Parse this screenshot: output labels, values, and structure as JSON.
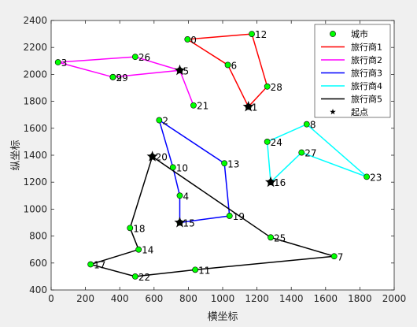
{
  "chart_data": {
    "type": "line",
    "xlabel": "横坐标",
    "ylabel": "纵坐标",
    "xlim": [
      0,
      2000
    ],
    "ylim": [
      400,
      2400
    ],
    "xticks": [
      0,
      200,
      400,
      600,
      800,
      1000,
      1200,
      1400,
      1600,
      1800,
      2000
    ],
    "yticks": [
      400,
      600,
      800,
      1000,
      1200,
      1400,
      1600,
      1800,
      2000,
      2200,
      2400
    ],
    "grid": false,
    "legend_position": "top-right",
    "city_legend": "城市",
    "start_legend": "起点",
    "cities": [
      {
        "id": 0,
        "x": 795,
        "y": 2260
      },
      {
        "id": 1,
        "x": 1150,
        "y": 1760
      },
      {
        "id": 2,
        "x": 630,
        "y": 1660
      },
      {
        "id": 3,
        "x": 40,
        "y": 2090
      },
      {
        "id": 4,
        "x": 750,
        "y": 1100
      },
      {
        "id": 5,
        "x": 750,
        "y": 2030
      },
      {
        "id": 6,
        "x": 1030,
        "y": 2070
      },
      {
        "id": 7,
        "x": 1650,
        "y": 650
      },
      {
        "id": 8,
        "x": 1490,
        "y": 1630
      },
      {
        "id": 9,
        "x": 360,
        "y": 1980
      },
      {
        "id": 10,
        "x": 710,
        "y": 1310
      },
      {
        "id": 11,
        "x": 840,
        "y": 550
      },
      {
        "id": 12,
        "x": 1170,
        "y": 2300
      },
      {
        "id": 13,
        "x": 1010,
        "y": 1340
      },
      {
        "id": 14,
        "x": 510,
        "y": 700
      },
      {
        "id": 15,
        "x": 750,
        "y": 900
      },
      {
        "id": 16,
        "x": 1280,
        "y": 1200
      },
      {
        "id": 17,
        "x": 230,
        "y": 590
      },
      {
        "id": 18,
        "x": 460,
        "y": 860
      },
      {
        "id": 19,
        "x": 1040,
        "y": 950
      },
      {
        "id": 20,
        "x": 590,
        "y": 1390
      },
      {
        "id": 21,
        "x": 830,
        "y": 1770
      },
      {
        "id": 22,
        "x": 490,
        "y": 500
      },
      {
        "id": 23,
        "x": 1840,
        "y": 1240
      },
      {
        "id": 24,
        "x": 1260,
        "y": 1500
      },
      {
        "id": 25,
        "x": 1280,
        "y": 790
      },
      {
        "id": 26,
        "x": 490,
        "y": 2130
      },
      {
        "id": 27,
        "x": 1460,
        "y": 1420
      },
      {
        "id": 28,
        "x": 1260,
        "y": 1910
      },
      {
        "id": 29,
        "x": 360,
        "y": 1980
      }
    ],
    "series": [
      {
        "name": "旅行商1",
        "color": "#ff0000",
        "route": [
          1,
          6,
          0,
          12,
          28,
          1
        ]
      },
      {
        "name": "旅行商2",
        "color": "#ff00ff",
        "route": [
          5,
          26,
          3,
          29,
          5,
          21,
          5
        ]
      },
      {
        "name": "旅行商3",
        "color": "#0000ff",
        "route": [
          15,
          19,
          13,
          2,
          10,
          4,
          15
        ]
      },
      {
        "name": "旅行商4",
        "color": "#00ffff",
        "route": [
          16,
          27,
          23,
          8,
          24,
          16
        ]
      },
      {
        "name": "旅行商5",
        "color": "#000000",
        "route": [
          20,
          25,
          7,
          25,
          7,
          11,
          22,
          17,
          14,
          18,
          20
        ]
      }
    ],
    "starts": [
      1,
      5,
      15,
      16,
      20
    ],
    "city_marker_color": "#00ff00"
  }
}
